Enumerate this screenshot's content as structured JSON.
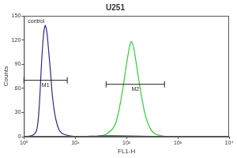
{
  "chart_data": {
    "type": "line",
    "title": "U251",
    "x_label": "FL1-H",
    "y_label": "Counts",
    "log": "x",
    "xlim": [
      1,
      10000
    ],
    "xticks": [
      {
        "value": 1,
        "label": "10⁰"
      },
      {
        "value": 10,
        "label": "10¹"
      },
      {
        "value": 100,
        "label": "10²"
      },
      {
        "value": 1000,
        "label": "10³"
      },
      {
        "value": 10000,
        "label": "10⁴"
      }
    ],
    "ylim": [
      0,
      150
    ],
    "yticks": [
      0,
      30,
      60,
      90,
      120,
      150
    ],
    "grid": false,
    "series": [
      {
        "name": "control",
        "color": "#2a2a8c",
        "x": [
          1,
          1.5,
          1.8,
          2.0,
          2.2,
          2.4,
          2.6,
          2.8,
          3.0,
          3.3,
          3.6,
          4,
          4.5,
          5,
          6,
          8,
          12,
          30,
          100,
          1000,
          10000
        ],
        "values": [
          0,
          2,
          10,
          40,
          90,
          125,
          138,
          130,
          110,
          80,
          50,
          28,
          14,
          7,
          3,
          1,
          0,
          1,
          1,
          0,
          0
        ]
      },
      {
        "color": "#33cc33",
        "x": [
          1,
          20,
          40,
          60,
          80,
          100,
          115,
          125,
          140,
          160,
          190,
          230,
          280,
          350,
          500,
          700,
          10000
        ],
        "values": [
          0,
          0,
          3,
          15,
          50,
          90,
          112,
          118,
          108,
          85,
          55,
          28,
          12,
          4,
          1,
          0,
          0
        ]
      }
    ],
    "gates": [
      {
        "label": "M1",
        "range": [
          1,
          7
        ],
        "y": 70
      },
      {
        "label": "M2",
        "range": [
          40,
          550
        ],
        "y": 65
      }
    ]
  }
}
